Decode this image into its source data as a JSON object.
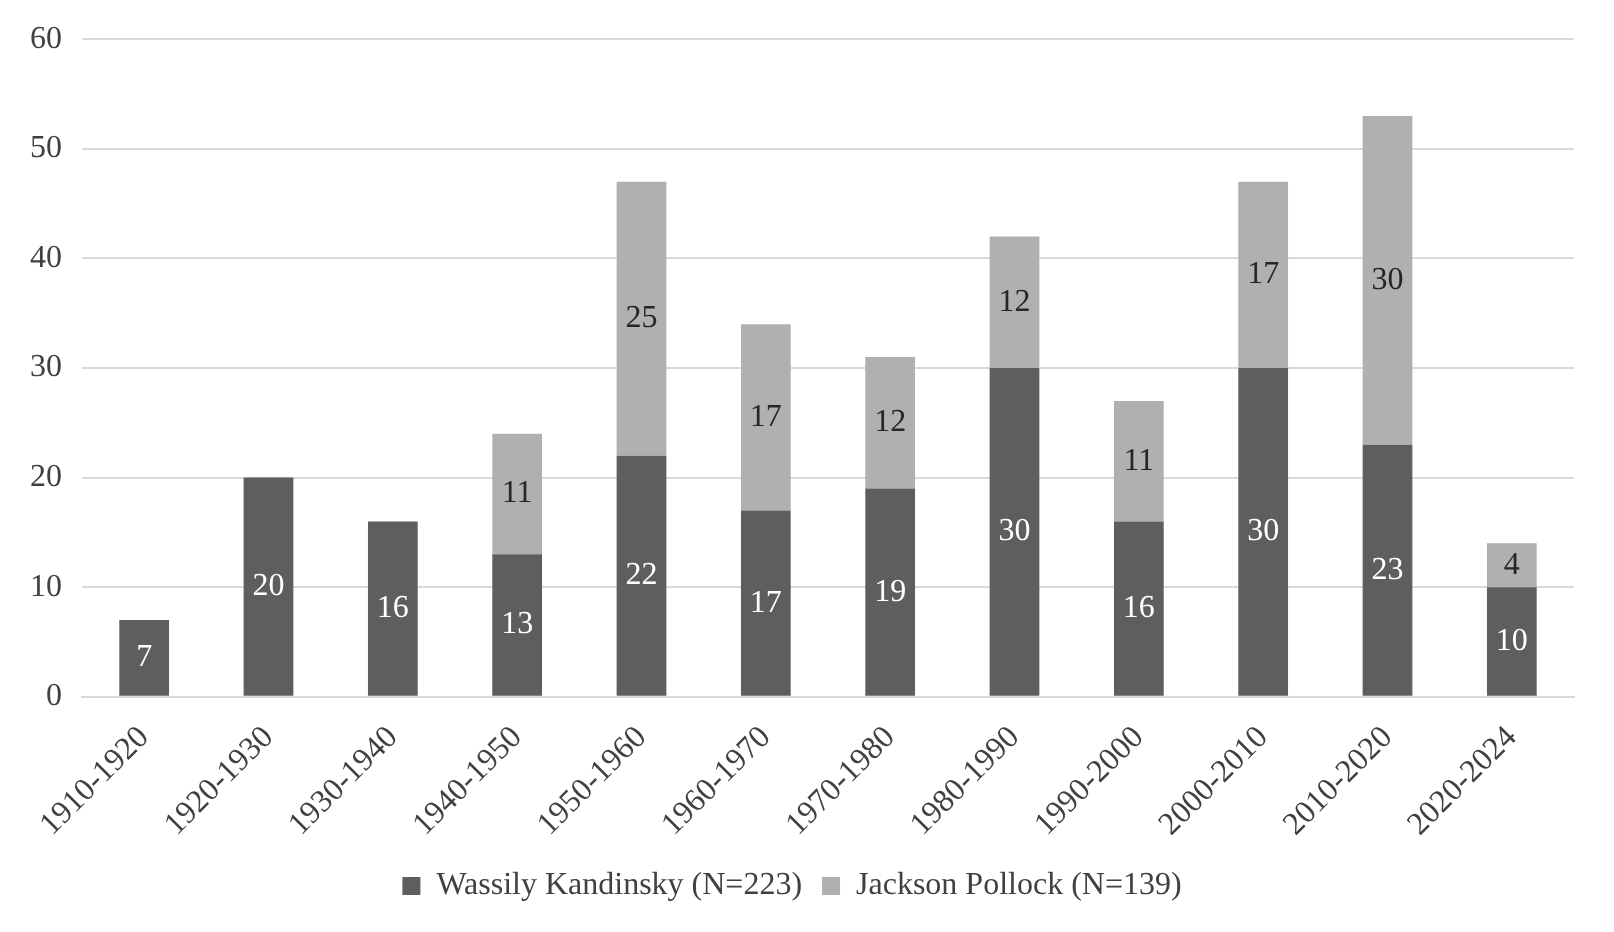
{
  "chart_data": {
    "type": "bar",
    "stacked": true,
    "data_labels": true,
    "grid": "y",
    "legend": "bottom",
    "categories": [
      "1910-1920",
      "1920-1930",
      "1930-1940",
      "1940-1950",
      "1950-1960",
      "1960-1970",
      "1970-1980",
      "1980-1990",
      "1990-2000",
      "2000-2010",
      "2010-2020",
      "2020-2024"
    ],
    "series": [
      {
        "name": "Wassily Kandinsky (N=223)",
        "color": "#5e5e5e",
        "values": [
          7,
          20,
          16,
          13,
          22,
          17,
          19,
          30,
          16,
          30,
          23,
          10
        ]
      },
      {
        "name": "Jackson Pollock (N=139)",
        "color": "#b0b0b0",
        "values": [
          null,
          null,
          null,
          11,
          25,
          17,
          12,
          12,
          11,
          17,
          30,
          4
        ]
      }
    ],
    "ylim": [
      0,
      60
    ],
    "yticks": [
      0,
      10,
      20,
      30,
      40,
      50,
      60
    ]
  }
}
